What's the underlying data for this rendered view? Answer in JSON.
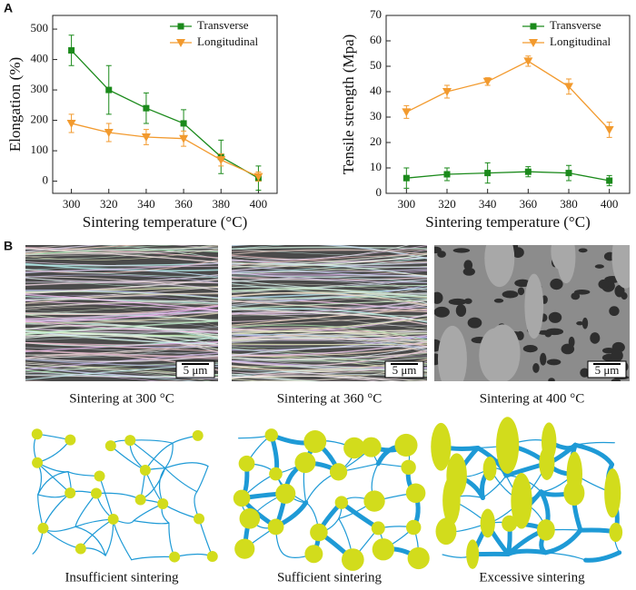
{
  "panels": [
    "A",
    "B"
  ],
  "chart_data": [
    {
      "type": "line",
      "x_label": "Sintering temperature (°C)",
      "y_label": "Elongation (%)",
      "x": [
        300,
        320,
        340,
        360,
        380,
        400
      ],
      "xlim": [
        290,
        410
      ],
      "xticks": [
        300,
        320,
        340,
        360,
        380,
        400
      ],
      "ylim": [
        -40,
        545
      ],
      "yticks": [
        0,
        100,
        200,
        300,
        400,
        500
      ],
      "legend": "upper right",
      "series": [
        {
          "name": "Transverse",
          "color": "#1b8a1b",
          "marker": "square",
          "values": [
            430,
            300,
            240,
            190,
            80,
            10
          ],
          "errors": [
            50,
            80,
            50,
            45,
            55,
            40
          ]
        },
        {
          "name": "Longitudinal",
          "color": "#f29a2e",
          "marker": "triangle-down",
          "values": [
            190,
            160,
            145,
            140,
            70,
            15
          ],
          "errors": [
            30,
            30,
            25,
            25,
            20,
            15
          ]
        }
      ]
    },
    {
      "type": "line",
      "x_label": "Sintering temperature (°C)",
      "y_label": "Tensile strength (Mpa)",
      "x": [
        300,
        320,
        340,
        360,
        380,
        400
      ],
      "xlim": [
        290,
        410
      ],
      "xticks": [
        300,
        320,
        340,
        360,
        380,
        400
      ],
      "ylim": [
        0,
        70
      ],
      "yticks": [
        0,
        10,
        20,
        30,
        40,
        50,
        60,
        70
      ],
      "legend": "upper right",
      "series": [
        {
          "name": "Transverse",
          "color": "#1b8a1b",
          "marker": "square",
          "values": [
            6,
            7.5,
            8,
            8.5,
            8,
            5
          ],
          "errors": [
            4,
            2.5,
            4,
            2,
            3,
            2
          ]
        },
        {
          "name": "Longitudinal",
          "color": "#f29a2e",
          "marker": "triangle-down",
          "values": [
            32,
            40,
            44,
            52,
            42,
            25
          ],
          "errors": [
            2.5,
            2.5,
            1.5,
            2,
            3,
            3
          ]
        }
      ]
    }
  ],
  "images": [
    {
      "caption": "Sintering at 300 °C",
      "scale_bar": "5 μm"
    },
    {
      "caption": "Sintering at 360 °C",
      "scale_bar": "5 μm"
    },
    {
      "caption": "Sintering at 400 °C",
      "scale_bar": "5 μm"
    }
  ],
  "schematics": [
    {
      "caption": "Insufficient sintering"
    },
    {
      "caption": "Sufficient sintering"
    },
    {
      "caption": "Excessive sintering"
    }
  ]
}
